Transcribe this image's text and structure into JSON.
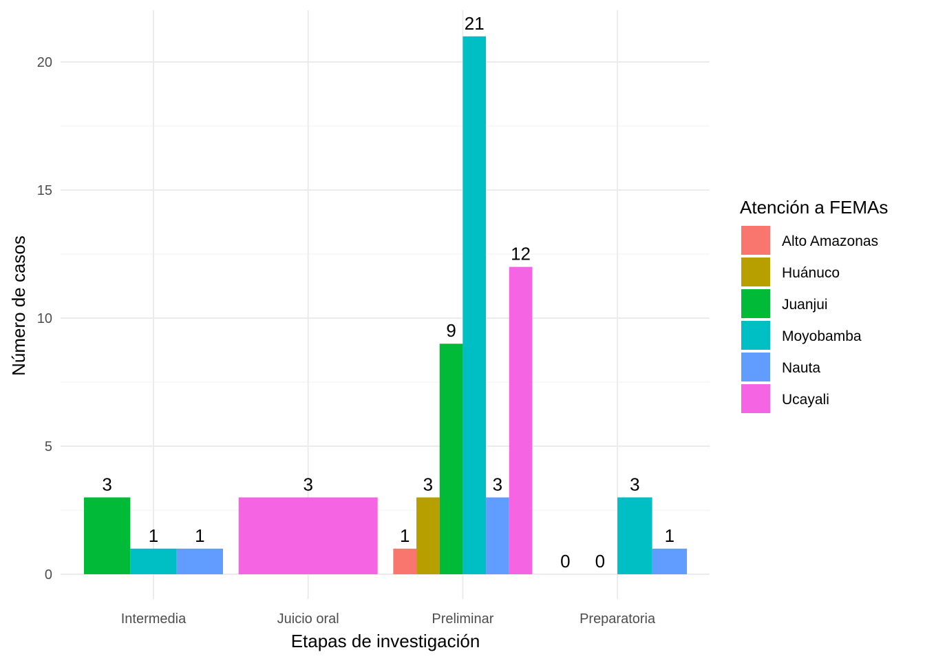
{
  "chart_data": {
    "type": "bar",
    "title": "",
    "xlabel": "Etapas de investigación",
    "ylabel": "Número de casos",
    "ylim": [
      0,
      22
    ],
    "yticks": [
      0,
      5,
      10,
      15,
      20
    ],
    "grid": true,
    "legend": {
      "title": "Atención a FEMAs",
      "position": "right"
    },
    "categories": [
      "Intermedia",
      "Juicio oral",
      "Preliminar",
      "Preparatoria"
    ],
    "series": [
      {
        "name": "Alto Amazonas",
        "color": "#F8766D"
      },
      {
        "name": "Huánuco",
        "color": "#B79F00"
      },
      {
        "name": "Juanjui",
        "color": "#00BA38"
      },
      {
        "name": "Moyobamba",
        "color": "#00BFC4"
      },
      {
        "name": "Nauta",
        "color": "#619CFF"
      },
      {
        "name": "Ucayali",
        "color": "#F564E3"
      }
    ],
    "groups": [
      {
        "category": "Intermedia",
        "bars": [
          {
            "series": "Juanjui",
            "value": 3,
            "label": "3"
          },
          {
            "series": "Moyobamba",
            "value": 1,
            "label": "1"
          },
          {
            "series": "Nauta",
            "value": 1,
            "label": "1"
          }
        ]
      },
      {
        "category": "Juicio oral",
        "bars": [
          {
            "series": "Ucayali",
            "value": 3,
            "label": "3"
          }
        ]
      },
      {
        "category": "Preliminar",
        "bars": [
          {
            "series": "Alto Amazonas",
            "value": 1,
            "label": "1"
          },
          {
            "series": "Huánuco",
            "value": 3,
            "label": "3"
          },
          {
            "series": "Juanjui",
            "value": 9,
            "label": "9"
          },
          {
            "series": "Moyobamba",
            "value": 21,
            "label": "21"
          },
          {
            "series": "Nauta",
            "value": 3,
            "label": "3"
          },
          {
            "series": "Ucayali",
            "value": 12,
            "label": "12"
          }
        ]
      },
      {
        "category": "Preparatoria",
        "bars": [
          {
            "series": "",
            "value": 0,
            "label": "0"
          },
          {
            "series": "",
            "value": 0,
            "label": "0"
          },
          {
            "series": "Moyobamba",
            "value": 3,
            "label": "3"
          },
          {
            "series": "Nauta",
            "value": 1,
            "label": "1"
          }
        ]
      }
    ]
  }
}
